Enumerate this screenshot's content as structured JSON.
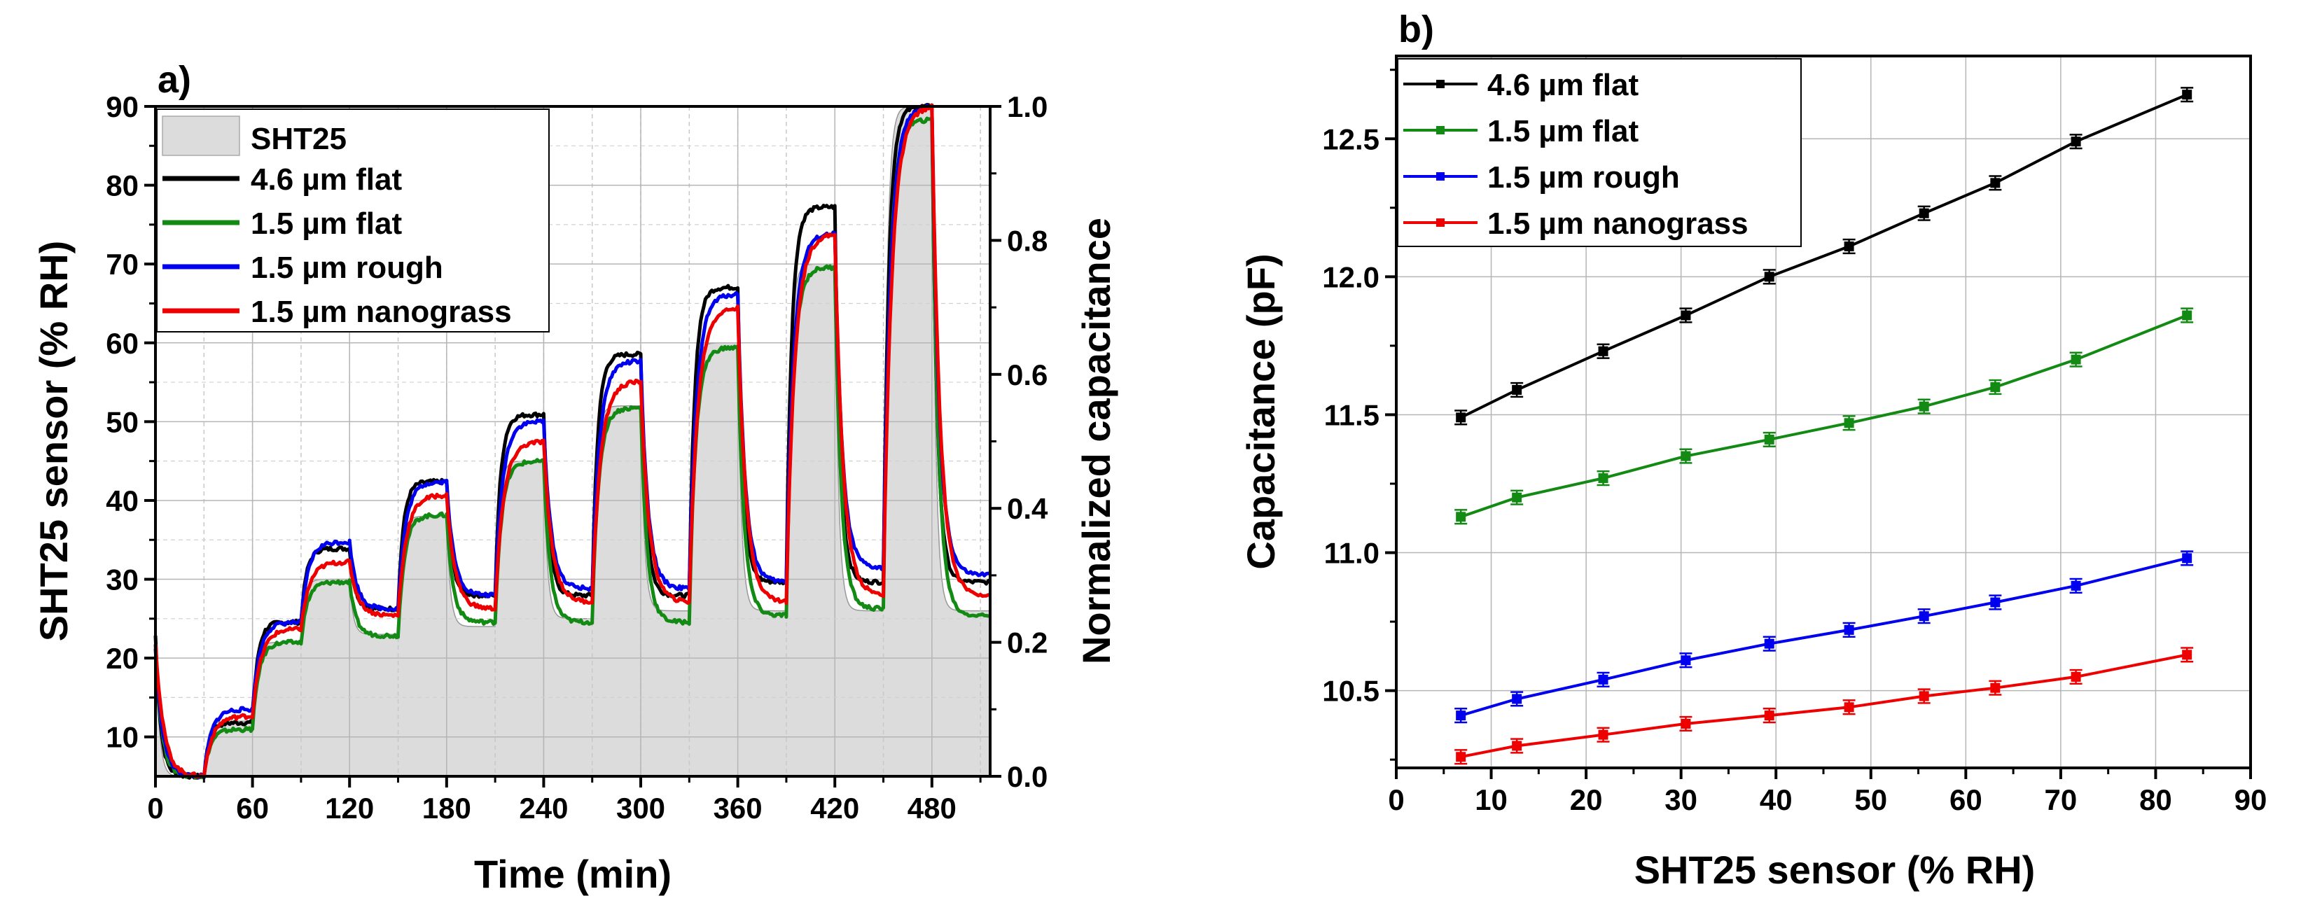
{
  "chart_data": [
    {
      "panel_label": "a)",
      "type": "line",
      "xlabel": "Time (min)",
      "ylabel": "SHT25 sensor (% RH)",
      "y2label": "Normalized capacitance",
      "xlim": [
        0,
        516
      ],
      "ylim": [
        5,
        90
      ],
      "y2lim": [
        0.0,
        1.0
      ],
      "xticks": [
        0,
        60,
        120,
        180,
        240,
        300,
        360,
        420,
        480
      ],
      "yticks": [
        10,
        20,
        30,
        40,
        50,
        60,
        70,
        80,
        90
      ],
      "y2ticks": [
        0.0,
        0.2,
        0.4,
        0.6,
        0.8,
        1.0
      ],
      "grid": true,
      "legend_position": "top-left",
      "reference": {
        "name": "SHT25",
        "color": "#dcdcdc",
        "axis": "left",
        "steps": [
          {
            "t0": 0,
            "t1": 30,
            "from": 24,
            "to": 5
          },
          {
            "t0": 30,
            "t1": 60,
            "from": 5,
            "to": 12
          },
          {
            "t0": 60,
            "t1": 90,
            "from": 12,
            "to": 22
          },
          {
            "t0": 90,
            "t1": 120,
            "from": 22,
            "to": 30
          },
          {
            "t0": 120,
            "t1": 150,
            "from": 30,
            "to": 23
          },
          {
            "t0": 150,
            "t1": 180,
            "from": 23,
            "to": 38
          },
          {
            "t0": 180,
            "t1": 210,
            "from": 38,
            "to": 24
          },
          {
            "t0": 210,
            "t1": 240,
            "from": 24,
            "to": 45
          },
          {
            "t0": 240,
            "t1": 270,
            "from": 45,
            "to": 25
          },
          {
            "t0": 270,
            "t1": 300,
            "from": 25,
            "to": 52
          },
          {
            "t0": 300,
            "t1": 330,
            "from": 52,
            "to": 26
          },
          {
            "t0": 330,
            "t1": 360,
            "from": 26,
            "to": 60
          },
          {
            "t0": 360,
            "t1": 390,
            "from": 60,
            "to": 26
          },
          {
            "t0": 390,
            "t1": 420,
            "from": 26,
            "to": 70
          },
          {
            "t0": 420,
            "t1": 450,
            "from": 70,
            "to": 26
          },
          {
            "t0": 450,
            "t1": 480,
            "from": 26,
            "to": 90
          },
          {
            "t0": 480,
            "t1": 516,
            "from": 90,
            "to": 26
          }
        ]
      },
      "series": [
        {
          "name": "4.6 µm flat",
          "color": "#000000",
          "axis": "right",
          "start": 0.21,
          "levels": [
            0.0,
            0.08,
            0.23,
            0.34,
            0.25,
            0.44,
            0.27,
            0.54,
            0.27,
            0.63,
            0.27,
            0.73,
            0.29,
            0.85,
            0.29,
            1.0,
            0.29
          ]
        },
        {
          "name": "1.5 µm flat",
          "color": "#138a13",
          "axis": "right",
          "start": 0.2,
          "levels": [
            0.0,
            0.07,
            0.2,
            0.29,
            0.21,
            0.39,
            0.23,
            0.47,
            0.23,
            0.55,
            0.23,
            0.64,
            0.24,
            0.76,
            0.25,
            0.98,
            0.24
          ]
        },
        {
          "name": "1.5 µm rough",
          "color": "#0000ee",
          "axis": "right",
          "start": 0.19,
          "levels": [
            0.0,
            0.1,
            0.23,
            0.35,
            0.25,
            0.44,
            0.27,
            0.53,
            0.28,
            0.62,
            0.28,
            0.72,
            0.29,
            0.81,
            0.31,
            1.0,
            0.3
          ]
        },
        {
          "name": "1.5 µm nanograss",
          "color": "#ee0000",
          "axis": "right",
          "start": 0.2,
          "levels": [
            0.0,
            0.09,
            0.22,
            0.32,
            0.24,
            0.42,
            0.25,
            0.5,
            0.26,
            0.59,
            0.26,
            0.7,
            0.26,
            0.81,
            0.27,
            1.0,
            0.27
          ]
        }
      ]
    },
    {
      "panel_label": "b)",
      "type": "line",
      "xlabel": "SHT25 sensor (% RH)",
      "ylabel": "Capacitance (pF)",
      "xlim": [
        0,
        90
      ],
      "ylim": [
        10.22,
        12.8
      ],
      "xticks": [
        0,
        10,
        20,
        30,
        40,
        50,
        60,
        70,
        80,
        90
      ],
      "yticks": [
        10.5,
        11.0,
        11.5,
        12.0,
        12.5
      ],
      "grid": true,
      "legend_position": "top-left",
      "x": [
        6.8,
        12.7,
        21.8,
        30.5,
        39.3,
        47.7,
        55.6,
        63.1,
        71.6,
        83.3
      ],
      "series": [
        {
          "name": "4.6 µm flat",
          "color": "#000000",
          "values": [
            11.49,
            11.59,
            11.73,
            11.86,
            12.0,
            12.11,
            12.23,
            12.34,
            12.49,
            12.66
          ]
        },
        {
          "name": "1.5 µm flat",
          "color": "#138a13",
          "values": [
            11.13,
            11.2,
            11.27,
            11.35,
            11.41,
            11.47,
            11.53,
            11.6,
            11.7,
            11.86
          ]
        },
        {
          "name": "1.5 µm rough",
          "color": "#0000ee",
          "values": [
            10.41,
            10.47,
            10.54,
            10.61,
            10.67,
            10.72,
            10.77,
            10.82,
            10.88,
            10.98
          ]
        },
        {
          "name": "1.5 µm nanograss",
          "color": "#ee0000",
          "values": [
            10.26,
            10.3,
            10.34,
            10.38,
            10.41,
            10.44,
            10.48,
            10.51,
            10.55,
            10.63
          ]
        }
      ],
      "error": 0.025
    }
  ]
}
